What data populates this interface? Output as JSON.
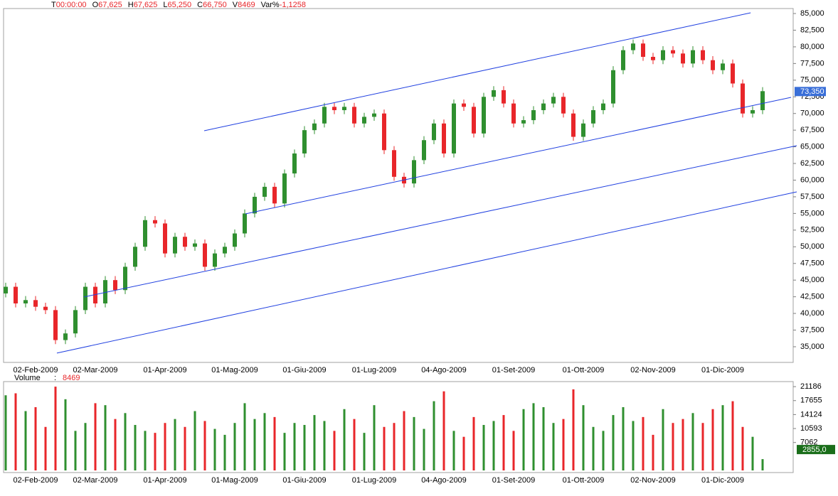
{
  "header": {
    "items": [
      {
        "label": "T",
        "value": "00:00:00"
      },
      {
        "label": "O",
        "value": "67,625"
      },
      {
        "label": "H",
        "value": "67,625"
      },
      {
        "label": "L",
        "value": "65,250"
      },
      {
        "label": "C",
        "value": "66,750"
      },
      {
        "label": "V",
        "value": "8469"
      },
      {
        "label": "Var%",
        "value": "-1,1258"
      }
    ]
  },
  "chart_data": [
    {
      "type": "candlestick",
      "categories": [
        null,
        null,
        null,
        "02-Feb-2009",
        null,
        null,
        null,
        null,
        null,
        "02-Mar-2009",
        null,
        null,
        null,
        null,
        null,
        null,
        "01-Apr-2009",
        null,
        null,
        null,
        null,
        null,
        null,
        "01-Mag-2009",
        null,
        null,
        null,
        null,
        null,
        null,
        "01-Giu-2009",
        null,
        null,
        null,
        null,
        null,
        null,
        "01-Lug-2009",
        null,
        null,
        null,
        null,
        null,
        null,
        "04-Ago-2009",
        null,
        null,
        null,
        null,
        null,
        null,
        "01-Set-2009",
        null,
        null,
        null,
        null,
        null,
        null,
        "01-Ott-2009",
        null,
        null,
        null,
        null,
        null,
        null,
        "02-Nov-2009",
        null,
        null,
        null,
        null,
        null,
        null,
        "01-Dic-2009",
        null,
        null,
        null,
        null
      ],
      "open": [
        43000,
        44000,
        41500,
        42000,
        41000,
        40500,
        36000,
        37000,
        40500,
        44000,
        41500,
        45000,
        43500,
        47000,
        50000,
        54000,
        53500,
        49000,
        51500,
        50000,
        50500,
        47000,
        49000,
        50000,
        52000,
        55000,
        57500,
        59000,
        56500,
        61000,
        64000,
        67500,
        68500,
        71000,
        70500,
        71000,
        68500,
        69500,
        70000,
        64500,
        60500,
        59500,
        63000,
        66000,
        68500,
        64000,
        71500,
        71000,
        67000,
        72500,
        73500,
        71500,
        68500,
        69000,
        70500,
        71500,
        72500,
        70000,
        66500,
        68500,
        70500,
        71500,
        76500,
        79500,
        80500,
        78500,
        78000,
        79500,
        79000,
        77500,
        79500,
        78000,
        76500,
        77500,
        74500,
        70000,
        70500
      ],
      "high": [
        44600,
        44600,
        42600,
        42600,
        41600,
        41100,
        37600,
        41100,
        44600,
        44600,
        45600,
        45600,
        47600,
        50600,
        54600,
        54600,
        54100,
        52100,
        52100,
        51100,
        51100,
        49600,
        50600,
        52600,
        55600,
        58100,
        59600,
        59600,
        61600,
        64600,
        68100,
        69100,
        71600,
        71600,
        71600,
        71600,
        70100,
        70600,
        70600,
        65100,
        61100,
        63600,
        66600,
        69100,
        69100,
        72100,
        72100,
        71600,
        73100,
        74100,
        74100,
        72100,
        69600,
        71100,
        72100,
        73100,
        73100,
        70600,
        69100,
        71100,
        72100,
        77100,
        80100,
        81100,
        81100,
        79100,
        80100,
        80100,
        79600,
        80100,
        80100,
        78600,
        78100,
        78100,
        75100,
        71100,
        73950
      ],
      "low": [
        42400,
        40900,
        40900,
        40400,
        39900,
        35400,
        35400,
        36400,
        39900,
        40900,
        40900,
        42900,
        42900,
        46400,
        49400,
        52900,
        48400,
        48400,
        49400,
        49400,
        46400,
        46400,
        48400,
        49400,
        51400,
        54400,
        56900,
        55900,
        55900,
        60400,
        63400,
        66900,
        67900,
        69900,
        69900,
        67900,
        67900,
        68900,
        63900,
        59900,
        58900,
        58900,
        62400,
        65400,
        63400,
        63400,
        70400,
        66400,
        66400,
        71900,
        70900,
        67900,
        67900,
        68400,
        69900,
        70900,
        69400,
        65900,
        65900,
        67900,
        69900,
        70900,
        75900,
        78900,
        77900,
        77400,
        77400,
        78400,
        76900,
        76900,
        77400,
        75900,
        75900,
        73900,
        69400,
        69400,
        69900
      ],
      "close": [
        44000,
        41500,
        42000,
        41000,
        40500,
        36000,
        37000,
        40500,
        44000,
        41500,
        45000,
        43500,
        47000,
        50000,
        54000,
        53500,
        49000,
        51500,
        50000,
        50500,
        47000,
        49000,
        50000,
        52000,
        55000,
        57500,
        59000,
        56500,
        61000,
        64000,
        67500,
        68500,
        71000,
        70500,
        71000,
        68500,
        69500,
        70000,
        64500,
        60500,
        59500,
        63000,
        66000,
        68500,
        64000,
        71500,
        71000,
        67000,
        72500,
        73500,
        71500,
        68500,
        69000,
        70500,
        71500,
        72500,
        70000,
        66500,
        68500,
        70500,
        71500,
        76500,
        79500,
        80500,
        78500,
        78000,
        79500,
        79000,
        77500,
        79500,
        78000,
        76500,
        77500,
        74500,
        70000,
        70500,
        73350
      ],
      "colors": {
        "up": "#2f8f2f",
        "down": "#e8262a"
      },
      "ylim": [
        32650,
        85750
      ],
      "yticks": [
        {
          "value": 35000,
          "label": "35,000"
        },
        {
          "value": 37500,
          "label": "37,500"
        },
        {
          "value": 40000,
          "label": "40,000"
        },
        {
          "value": 42500,
          "label": "42,500"
        },
        {
          "value": 45000,
          "label": "45,000"
        },
        {
          "value": 47500,
          "label": "47,500"
        },
        {
          "value": 50000,
          "label": "50,000"
        },
        {
          "value": 52500,
          "label": "52,500"
        },
        {
          "value": 55000,
          "label": "55,000"
        },
        {
          "value": 57500,
          "label": "57,500"
        },
        {
          "value": 60000,
          "label": "60,000"
        },
        {
          "value": 62500,
          "label": "62,500"
        },
        {
          "value": 65000,
          "label": "65,000"
        },
        {
          "value": 67500,
          "label": "67,500"
        },
        {
          "value": 70000,
          "label": "70,000"
        },
        {
          "value": 72500,
          "label": "72,500"
        },
        {
          "value": 75000,
          "label": "75,000"
        },
        {
          "value": 77500,
          "label": "77,500"
        },
        {
          "value": 80000,
          "label": "80,000"
        },
        {
          "value": 82500,
          "label": "82,500"
        },
        {
          "value": 85000,
          "label": "85,000"
        }
      ],
      "last_price": {
        "value": 73350,
        "label": "73,350",
        "color": "#3a6fd8"
      },
      "trend_lines": {
        "color": "#2040e0",
        "lines": [
          {
            "x": [
              19.93,
              74.8
            ],
            "y": [
              67411,
              85107
            ]
          },
          {
            "x": [
              24.07,
              78.86
            ],
            "y": [
              54939,
              72421
            ]
          },
          {
            "x": [
              7.86,
              79.43
            ],
            "y": [
              42466,
              65172
            ]
          },
          {
            "x": [
              5.14,
              79.43
            ],
            "y": [
              34045,
              58243
            ]
          }
        ]
      }
    },
    {
      "type": "bar",
      "title": "Volume",
      "value_label": ":",
      "current": "8469",
      "values": [
        19000,
        19500,
        15000,
        16000,
        11000,
        21186,
        18000,
        10000,
        12000,
        17000,
        16500,
        13000,
        14500,
        11500,
        10000,
        9500,
        12000,
        13000,
        11000,
        15000,
        12500,
        10500,
        9000,
        12000,
        17000,
        13000,
        14500,
        13500,
        9500,
        12000,
        11500,
        14000,
        12500,
        10000,
        15500,
        13000,
        9500,
        16500,
        11000,
        12000,
        15000,
        13500,
        10500,
        17500,
        20000,
        10000,
        8500,
        13500,
        11500,
        12500,
        14000,
        10000,
        15500,
        17000,
        16000,
        12000,
        13000,
        20500,
        16500,
        11000,
        10000,
        14000,
        16000,
        12500,
        13500,
        9000,
        15500,
        12000,
        13000,
        14500,
        12000,
        15500,
        16500,
        17500,
        11000,
        8500,
        2855
      ],
      "ylim": [
        0,
        22460
      ],
      "yticks": [
        7062,
        10593,
        14124,
        17655,
        21186
      ],
      "last_value": {
        "value": 2855,
        "label": "2855,0",
        "color": "#1a6e1a"
      }
    }
  ]
}
